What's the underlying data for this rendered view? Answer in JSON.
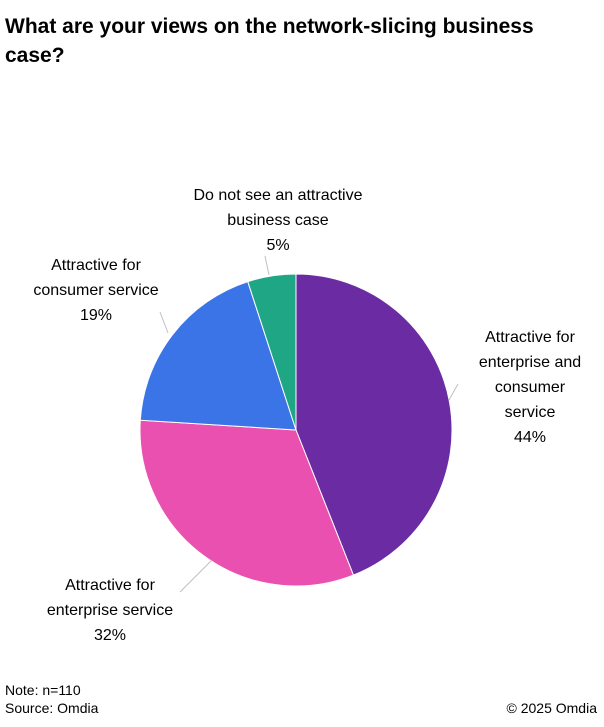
{
  "chart_data": {
    "type": "pie",
    "title": "What are your views on the network-slicing business case?",
    "slices": [
      {
        "label": [
          "Attractive for",
          "enterprise and",
          "consumer",
          "service"
        ],
        "value": 44,
        "display": "44%",
        "color": "#6a2ba3"
      },
      {
        "label": [
          "Attractive for",
          "enterprise service"
        ],
        "value": 32,
        "display": "32%",
        "color": "#ea50b0"
      },
      {
        "label": [
          "Attractive for",
          "consumer service"
        ],
        "value": 19,
        "display": "19%",
        "color": "#3a74e6"
      },
      {
        "label": [
          "Do not see an attractive",
          "business case"
        ],
        "value": 5,
        "display": "5%",
        "color": "#1fa785"
      }
    ],
    "legend": "none (labels next to slices)"
  },
  "footer": {
    "note": "Note: n=110",
    "source": "Source: Omdia",
    "copyright": "© 2025 Omdia"
  }
}
